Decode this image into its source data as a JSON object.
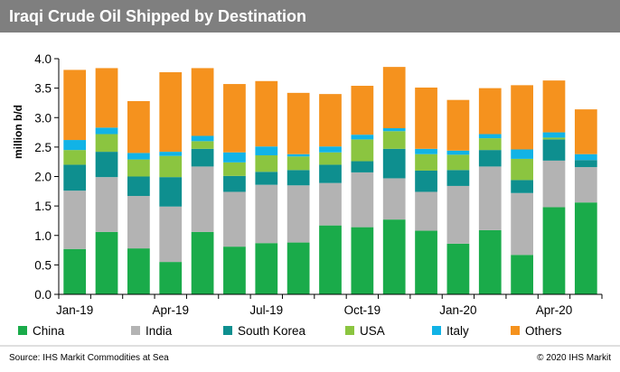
{
  "title": "Iraqi Crude Oil Shipped by Destination",
  "source": "Source: IHS Markit Commodities at Sea",
  "copyright": "© 2020 IHS Markit",
  "chart_data": {
    "type": "bar",
    "stacked": true,
    "ylabel": "million b/d",
    "ylim": [
      0,
      4.0
    ],
    "yticks": [
      "0.0",
      "0.5",
      "1.0",
      "1.5",
      "2.0",
      "2.5",
      "3.0",
      "3.5",
      "4.0"
    ],
    "categories": [
      "Jan-19",
      "Feb-19",
      "Mar-19",
      "Apr-19",
      "May-19",
      "Jun-19",
      "Jul-19",
      "Aug-19",
      "Sep-19",
      "Oct-19",
      "Nov-19",
      "Dec-19",
      "Jan-20",
      "Feb-20",
      "Mar-20",
      "Apr-20",
      "May-20"
    ],
    "xtick_labels": [
      "Jan-19",
      "",
      "",
      "Apr-19",
      "",
      "",
      "Jul-19",
      "",
      "",
      "Oct-19",
      "",
      "",
      "Jan-20",
      "",
      "",
      "Apr-20",
      ""
    ],
    "grid": false,
    "legend_position": "bottom",
    "series": [
      {
        "name": "China",
        "color": "#1aab4a",
        "values": [
          0.77,
          1.06,
          0.78,
          0.55,
          1.06,
          0.81,
          0.87,
          0.88,
          1.17,
          1.14,
          1.27,
          1.08,
          0.86,
          1.09,
          0.67,
          1.48,
          1.56
        ]
      },
      {
        "name": "India",
        "color": "#b3b3b3",
        "values": [
          0.99,
          0.93,
          0.89,
          0.94,
          1.11,
          0.93,
          0.99,
          0.97,
          0.72,
          0.93,
          0.7,
          0.66,
          0.98,
          1.08,
          1.05,
          0.79,
          0.6
        ]
      },
      {
        "name": "South Korea",
        "color": "#0e8f8f",
        "values": [
          0.44,
          0.43,
          0.33,
          0.5,
          0.3,
          0.27,
          0.22,
          0.26,
          0.31,
          0.19,
          0.5,
          0.36,
          0.27,
          0.28,
          0.22,
          0.36,
          0.12
        ]
      },
      {
        "name": "USA",
        "color": "#8bc540",
        "values": [
          0.25,
          0.3,
          0.29,
          0.36,
          0.13,
          0.23,
          0.28,
          0.23,
          0.21,
          0.37,
          0.3,
          0.28,
          0.26,
          0.2,
          0.36,
          0.03,
          0.0
        ]
      },
      {
        "name": "Italy",
        "color": "#11b3e6",
        "values": [
          0.17,
          0.11,
          0.11,
          0.07,
          0.09,
          0.17,
          0.15,
          0.04,
          0.1,
          0.08,
          0.05,
          0.09,
          0.07,
          0.07,
          0.16,
          0.09,
          0.1
        ]
      },
      {
        "name": "Others",
        "color": "#f5921e",
        "values": [
          1.19,
          1.01,
          0.88,
          1.35,
          1.15,
          1.16,
          1.11,
          1.04,
          0.89,
          0.83,
          1.04,
          1.04,
          0.86,
          0.78,
          1.09,
          0.88,
          0.76
        ]
      }
    ]
  }
}
